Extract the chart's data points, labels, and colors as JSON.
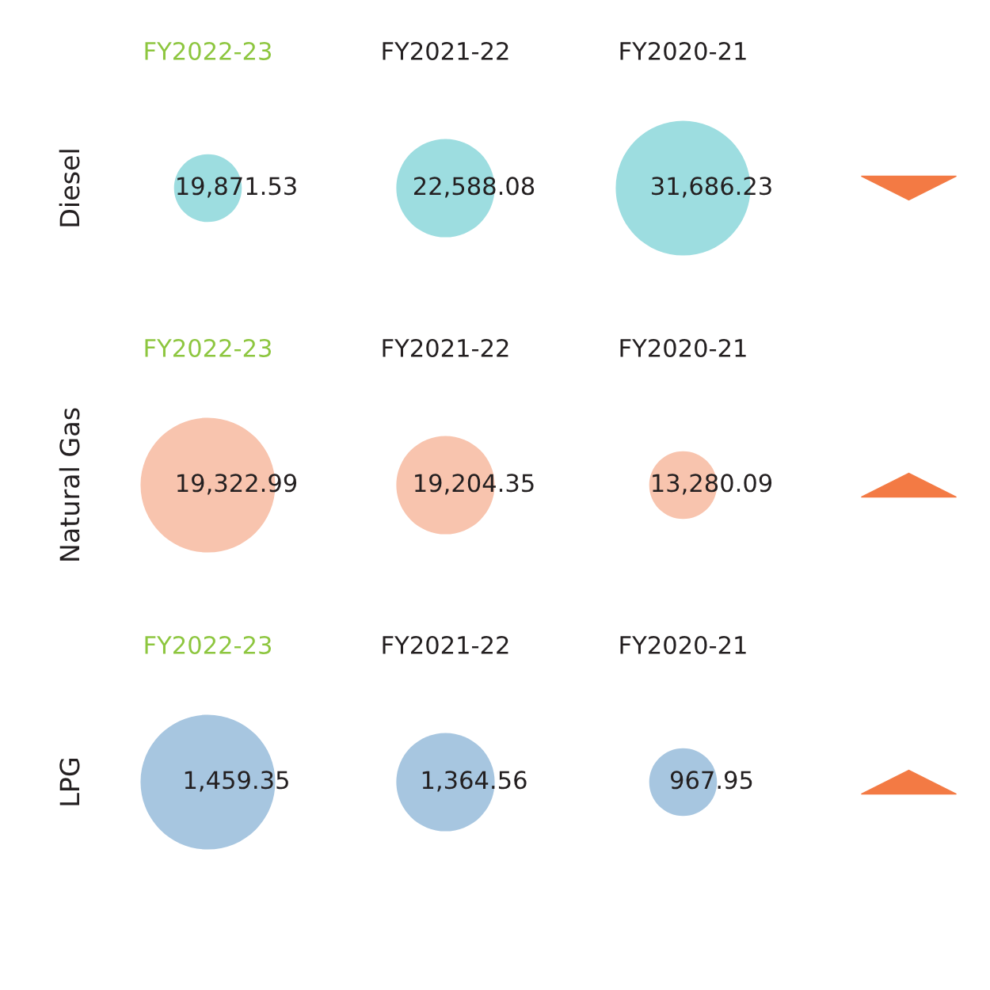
{
  "chart_data": [
    {
      "type": "other",
      "ylabel": "Diesel",
      "categories": [
        "FY2022-23",
        "FY2021-22",
        "FY2020-21"
      ],
      "values": [
        19871.53,
        22588.08,
        31686.23
      ],
      "color": "#9ddde0",
      "data_labels": true,
      "value_labels": [
        "19,871.53",
        "22,588.08",
        "31,686.23"
      ]
    },
    {
      "type": "other",
      "ylabel": "Natural Gas",
      "categories": [
        "FY2022-23",
        "FY2021-22",
        "FY2020-21"
      ],
      "values": [
        19322.99,
        19204.35,
        13280.09
      ],
      "color": "#f8c4ae",
      "data_labels": true,
      "value_labels": [
        "19,322.99",
        "19,204.35",
        "13,280.09"
      ]
    },
    {
      "type": "other",
      "ylabel": "LPG",
      "categories": [
        "FY2022-23",
        "FY2021-22",
        "FY2020-21"
      ],
      "values": [
        1459.35,
        1364.56,
        967.95
      ],
      "color": "#a7c6e0",
      "data_labels": true,
      "value_labels": [
        "1,459.35",
        "1,364.56",
        "967.95"
      ]
    }
  ]
}
